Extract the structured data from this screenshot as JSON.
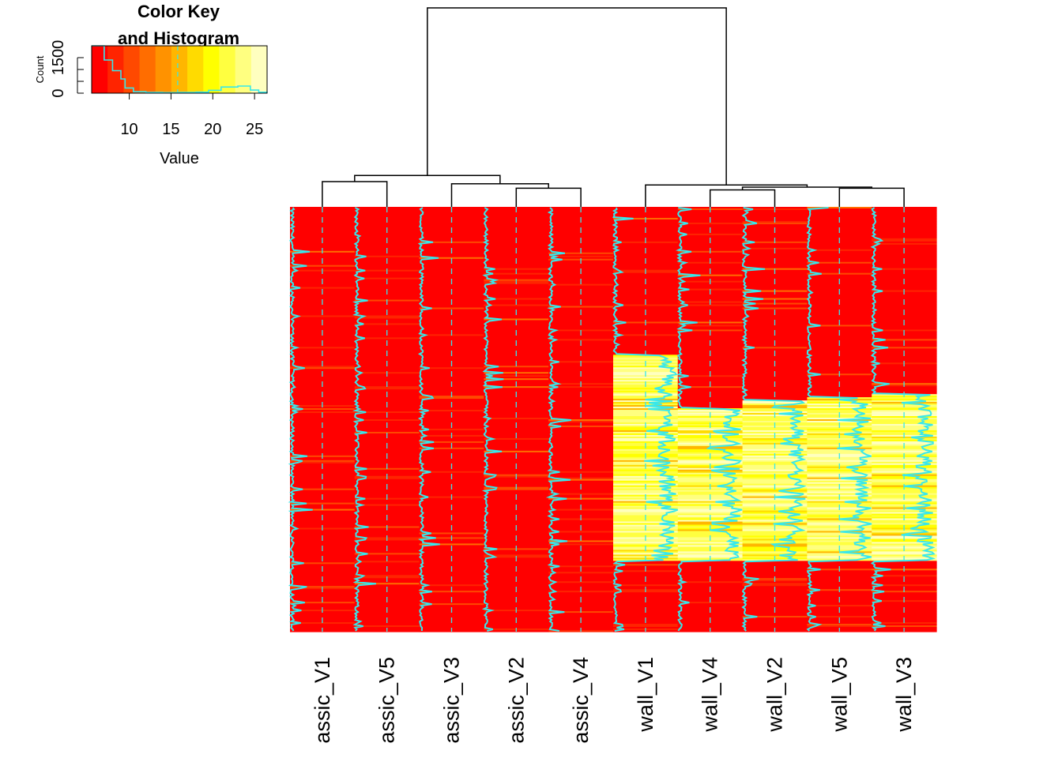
{
  "chart_data": {
    "type": "heatmap",
    "columns": [
      "assic_V1",
      "assic_V5",
      "assic_V3",
      "assic_V2",
      "assic_V4",
      "wall_V1",
      "wall_V4",
      "wall_V2",
      "wall_V5",
      "wall_V3"
    ],
    "column_groups": [
      "assic",
      "assic",
      "assic",
      "assic",
      "assic",
      "wall",
      "wall",
      "wall",
      "wall",
      "wall"
    ],
    "row_blocks": [
      {
        "rows": "top",
        "fraction": 0.347,
        "assic_value": 6,
        "wall_value": 6
      },
      {
        "rows": "middle",
        "fraction": 0.488,
        "assic_value": 6,
        "wall_value": 22
      },
      {
        "rows": "bottom",
        "fraction": 0.165,
        "assic_value": 6,
        "wall_value": 6
      }
    ],
    "wall_high_block_start_fraction": [
      0.347,
      0.475,
      0.454,
      0.449,
      0.439
    ],
    "value_range": [
      5.5,
      26.5
    ],
    "color_scale": [
      "#ff0000",
      "#ff2400",
      "#ff4900",
      "#ff6d00",
      "#ff9200",
      "#ffb600",
      "#ffdb00",
      "#ffff00",
      "#ffff40",
      "#ffff80",
      "#ffffbf"
    ],
    "trace_color": "#37e8ec",
    "dendrogram": {
      "order": [
        "assic_V1",
        "assic_V5",
        "assic_V3",
        "assic_V2",
        "assic_V4",
        "wall_V1",
        "wall_V4",
        "wall_V2",
        "wall_V5",
        "wall_V3"
      ],
      "merges": [
        {
          "left": 0,
          "right": 1,
          "height": 0.02
        },
        {
          "left": 3,
          "right": 4,
          "height": 0.008
        },
        {
          "left": 2,
          "right": 3.5,
          "height": 0.016
        },
        {
          "left": 0.5,
          "right": 2.75,
          "height": 0.031
        },
        {
          "left": 6,
          "right": 7,
          "height": 0.005
        },
        {
          "left": 8,
          "right": 9,
          "height": 0.008
        },
        {
          "left": 6.5,
          "right": 8.5,
          "height": 0.01
        },
        {
          "left": 5,
          "right": 7.5,
          "height": 0.014
        },
        {
          "left": 1.625,
          "right": 6.25,
          "height": 0.3
        }
      ]
    },
    "color_key": {
      "title": "Color Key",
      "subtitle": "and Histogram",
      "xlabel": "Value",
      "ylabel": "Count",
      "x_ticks": [
        10,
        15,
        20,
        25
      ],
      "y_ticks": [
        0,
        1500
      ],
      "xlim": [
        5.5,
        26.5
      ],
      "ylim": [
        0,
        2000
      ],
      "histogram": [
        {
          "x": 5.5,
          "count": 2000
        },
        {
          "x": 7,
          "count": 1400
        },
        {
          "x": 8,
          "count": 950
        },
        {
          "x": 9,
          "count": 600
        },
        {
          "x": 9.5,
          "count": 220
        },
        {
          "x": 10.5,
          "count": 60
        },
        {
          "x": 12,
          "count": 30
        },
        {
          "x": 14,
          "count": 25
        },
        {
          "x": 16,
          "count": 30
        },
        {
          "x": 18,
          "count": 45
        },
        {
          "x": 19.5,
          "count": 120
        },
        {
          "x": 21,
          "count": 260
        },
        {
          "x": 23,
          "count": 300
        },
        {
          "x": 24.5,
          "count": 130
        },
        {
          "x": 25.5,
          "count": 40
        },
        {
          "x": 26.5,
          "count": 20
        }
      ]
    }
  }
}
